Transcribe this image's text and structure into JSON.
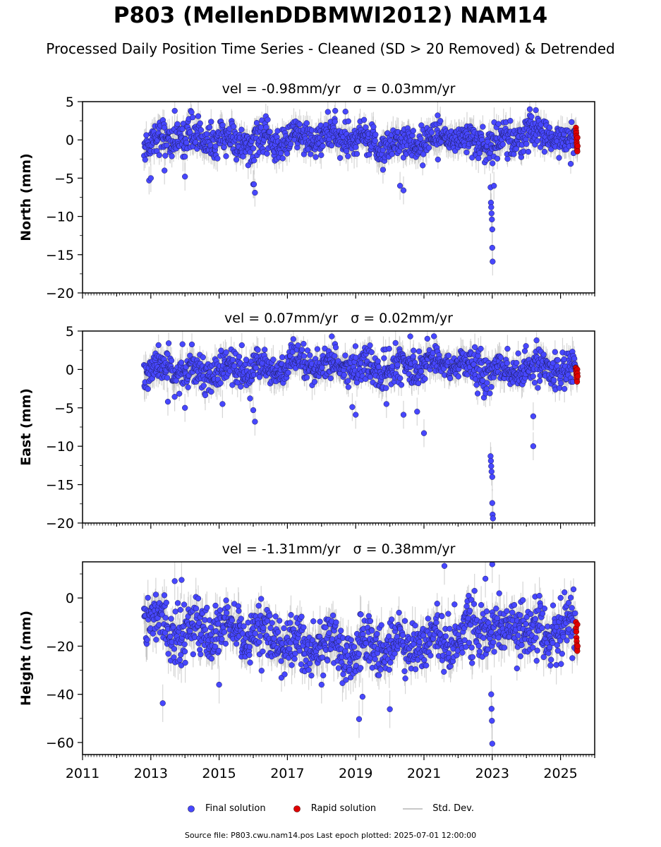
{
  "figure": {
    "title": "P803 (MellenDDBMWI2012) NAM14",
    "subtitle": "Processed Daily Position Time Series - Cleaned (SD > 20 Removed) & Detrended"
  },
  "legend": {
    "final_label": "Final solution",
    "rapid_label": "Rapid solution",
    "std_label": "Std. Dev."
  },
  "footer": {
    "text": "Source file: P803.cwu.nam14.pos  Last epoch plotted: 2025-07-01 12:00:00"
  },
  "colors": {
    "final": "#4747ff",
    "rapid": "#e00000",
    "std": "#b4b4b4"
  },
  "chart_data": [
    {
      "type": "scatter",
      "title": "vel = -0.98mm/yr   σ = 0.03mm/yr",
      "ylabel": "North (mm)",
      "xlim": [
        2011,
        2026
      ],
      "ylim": [
        -20,
        5
      ],
      "yticks": [
        5,
        0,
        -5,
        -10,
        -15,
        -20
      ],
      "ytick_labels": [
        "5",
        "0",
        "−5",
        "−10",
        "−15",
        "−20"
      ],
      "show_xticklabels": false,
      "grid": false,
      "series": [
        {
          "name": "Final solution",
          "start": 2012.8,
          "end": 2025.45,
          "scatter": 1.1,
          "std": 1.4,
          "segments": [
            [
              2012.8,
              -0.3
            ],
            [
              2014.0,
              0.5
            ],
            [
              2016.0,
              -0.5
            ],
            [
              2018.0,
              0.4
            ],
            [
              2020.0,
              -0.6
            ],
            [
              2022.0,
              0.4
            ],
            [
              2023.0,
              -0.5
            ],
            [
              2024.0,
              0.8
            ],
            [
              2025.45,
              -0.2
            ]
          ],
          "outliers": [
            [
              2012.95,
              -5.3
            ],
            [
              2013.0,
              -5.0
            ],
            [
              2013.4,
              -4.0
            ],
            [
              2014.0,
              -4.8
            ],
            [
              2016.0,
              -5.8
            ],
            [
              2016.05,
              -6.9
            ],
            [
              2016.02,
              -5.8
            ],
            [
              2019.8,
              -3.9
            ],
            [
              2020.3,
              -6.0
            ],
            [
              2020.4,
              -6.6
            ],
            [
              2022.95,
              -6.2
            ],
            [
              2022.96,
              -8.2
            ],
            [
              2022.97,
              -8.8
            ],
            [
              2022.98,
              -9.6
            ],
            [
              2022.99,
              -10.4
            ],
            [
              2023.0,
              -11.7
            ],
            [
              2023.0,
              -14.1
            ],
            [
              2023.01,
              -15.9
            ],
            [
              2023.05,
              -6.0
            ],
            [
              2018.4,
              3.8
            ],
            [
              2018.7,
              3.7
            ],
            [
              2021.4,
              3.2
            ],
            [
              2024.1,
              4.0
            ],
            [
              2013.7,
              3.8
            ]
          ]
        },
        {
          "name": "Rapid solution",
          "start": 2025.45,
          "end": 2025.5,
          "values": [
            1.6,
            1.2,
            0.9,
            0.5,
            0.1,
            -0.3,
            -0.6,
            -1.0,
            -1.3,
            -1.5,
            0.3,
            -0.8
          ]
        }
      ]
    },
    {
      "type": "scatter",
      "title": "vel = 0.07mm/yr   σ = 0.02mm/yr",
      "ylabel": "East (mm)",
      "xlim": [
        2011,
        2026
      ],
      "ylim": [
        -20,
        5
      ],
      "yticks": [
        5,
        0,
        -5,
        -10,
        -15,
        -20
      ],
      "ytick_labels": [
        "5",
        "0",
        "−5",
        "−10",
        "−15",
        "−20"
      ],
      "show_xticklabels": false,
      "grid": false,
      "series": [
        {
          "name": "Final solution",
          "start": 2012.8,
          "end": 2025.45,
          "scatter": 1.1,
          "std": 1.4,
          "segments": [
            [
              2012.8,
              0.0
            ],
            [
              2015.0,
              -0.2
            ],
            [
              2018.0,
              0.6
            ],
            [
              2020.0,
              0.0
            ],
            [
              2021.5,
              1.0
            ],
            [
              2023.0,
              -0.3
            ],
            [
              2025.45,
              0.2
            ]
          ],
          "outliers": [
            [
              2013.5,
              -4.2
            ],
            [
              2014.0,
              -5.0
            ],
            [
              2015.1,
              -4.5
            ],
            [
              2016.0,
              -5.3
            ],
            [
              2016.05,
              -6.8
            ],
            [
              2018.9,
              -4.9
            ],
            [
              2019.0,
              -5.9
            ],
            [
              2019.9,
              -4.5
            ],
            [
              2020.4,
              -5.9
            ],
            [
              2020.8,
              -5.5
            ],
            [
              2021.0,
              -8.3
            ],
            [
              2022.95,
              -11.3
            ],
            [
              2022.96,
              -11.9
            ],
            [
              2022.97,
              -12.6
            ],
            [
              2022.98,
              -13.3
            ],
            [
              2023.0,
              -14.0
            ],
            [
              2023.0,
              -17.4
            ],
            [
              2023.01,
              -18.9
            ],
            [
              2023.02,
              -19.4
            ],
            [
              2024.2,
              -10.0
            ],
            [
              2024.2,
              -6.1
            ],
            [
              2018.3,
              4.3
            ],
            [
              2020.6,
              4.3
            ],
            [
              2021.1,
              4.0
            ]
          ]
        },
        {
          "name": "Rapid solution",
          "start": 2025.45,
          "end": 2025.5,
          "values": [
            0.2,
            -0.1,
            -0.4,
            -0.7,
            -1.0,
            -1.3,
            -1.6,
            0.0,
            -0.5,
            -0.9
          ]
        }
      ]
    },
    {
      "type": "scatter",
      "title": "vel = -1.31mm/yr   σ = 0.38mm/yr",
      "ylabel": "Height (mm)",
      "xlim": [
        2011,
        2026
      ],
      "ylim": [
        -65,
        15
      ],
      "yticks": [
        0,
        -20,
        -40,
        -60
      ],
      "ytick_labels": [
        "0",
        "−20",
        "−40",
        "−60"
      ],
      "show_xticklabels": true,
      "xticks": [
        2011,
        2013,
        2015,
        2017,
        2019,
        2021,
        2023,
        2025
      ],
      "xtick_labels": [
        "2011",
        "2013",
        "2015",
        "2017",
        "2019",
        "2021",
        "2023",
        "2025"
      ],
      "grid": false,
      "series": [
        {
          "name": "Final solution",
          "start": 2012.8,
          "end": 2025.45,
          "scatter": 5.5,
          "std": 6.0,
          "segments": [
            [
              2012.8,
              -5.0
            ],
            [
              2013.3,
              -12.0
            ],
            [
              2015.0,
              -14.0
            ],
            [
              2017.0,
              -18.0
            ],
            [
              2019.0,
              -22.0
            ],
            [
              2021.0,
              -18.0
            ],
            [
              2022.5,
              -14.0
            ],
            [
              2024.0,
              -13.0
            ],
            [
              2025.45,
              -14.0
            ]
          ],
          "outliers": [
            [
              2013.35,
              -43.7
            ],
            [
              2013.7,
              7.0
            ],
            [
              2013.9,
              7.5
            ],
            [
              2019.1,
              -50.3
            ],
            [
              2019.2,
              -41.0
            ],
            [
              2020.0,
              -46.2
            ],
            [
              2022.97,
              -40.0
            ],
            [
              2022.98,
              -46.0
            ],
            [
              2022.99,
              -51.0
            ],
            [
              2023.0,
              -60.5
            ],
            [
              2021.6,
              13.3
            ],
            [
              2023.0,
              14.0
            ],
            [
              2022.8,
              8.0
            ],
            [
              2015.0,
              -36.0
            ],
            [
              2018.0,
              -36.0
            ]
          ]
        },
        {
          "name": "Rapid solution",
          "start": 2025.45,
          "end": 2025.5,
          "values": [
            -10.0,
            -12.5,
            -14.0,
            -16.5,
            -18.0,
            -19.5,
            -21.0,
            -22.0,
            -11.0,
            -20.0
          ]
        }
      ]
    }
  ]
}
